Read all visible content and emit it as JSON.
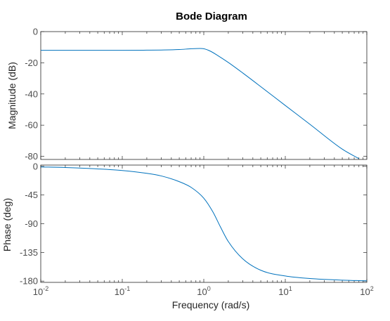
{
  "chart_data": [
    {
      "type": "line",
      "title": "Bode Diagram",
      "ylabel": "Magnitude (dB)",
      "xlabel": "",
      "xscale": "log",
      "xlim": [
        0.01,
        100
      ],
      "ylim": [
        -82,
        0
      ],
      "yticks": [
        0,
        -20,
        -40,
        -60,
        -80
      ],
      "ytick_labels": [
        "0",
        "-20",
        "-40",
        "-60",
        "-80"
      ],
      "grid": false,
      "series": [
        {
          "color": "#0072BD",
          "x": [
            0.01,
            0.02,
            0.05,
            0.1,
            0.2,
            0.3,
            0.5,
            0.7,
            0.9,
            1,
            1.2,
            1.5,
            2,
            3,
            5,
            10,
            20,
            50,
            80
          ],
          "y": [
            -12,
            -12,
            -12,
            -12,
            -11.9,
            -11.8,
            -11.5,
            -11.0,
            -10.8,
            -11.0,
            -12.5,
            -15.5,
            -19.8,
            -26.5,
            -35.3,
            -47.4,
            -59.4,
            -75.4,
            -81.5
          ]
        }
      ]
    },
    {
      "type": "line",
      "title": "",
      "ylabel": "Phase (deg)",
      "xlabel": "Frequency  (rad/s)",
      "xscale": "log",
      "xlim": [
        0.01,
        100
      ],
      "ylim": [
        -182,
        2
      ],
      "yticks": [
        0,
        -45,
        -90,
        -135,
        -180
      ],
      "ytick_labels": [
        "0",
        "-45",
        "-90",
        "-135",
        "-180"
      ],
      "xticks": [
        0.01,
        0.1,
        1,
        10,
        100
      ],
      "xtick_labels": [
        {
          "base": "10",
          "exp": "-2"
        },
        {
          "base": "10",
          "exp": "-1"
        },
        {
          "base": "10",
          "exp": "0"
        },
        {
          "base": "10",
          "exp": "1"
        },
        {
          "base": "10",
          "exp": "2"
        }
      ],
      "grid": false,
      "series": [
        {
          "color": "#0072BD",
          "x": [
            0.01,
            0.02,
            0.05,
            0.1,
            0.2,
            0.3,
            0.5,
            0.7,
            1,
            1.3,
            1.6,
            2,
            3,
            5,
            10,
            20,
            50,
            100
          ],
          "y": [
            -1,
            -1.8,
            -4,
            -6.5,
            -11,
            -15,
            -24,
            -33,
            -50,
            -72,
            -95,
            -118,
            -145,
            -163,
            -172,
            -176,
            -178.5,
            -179.5
          ]
        }
      ]
    }
  ]
}
